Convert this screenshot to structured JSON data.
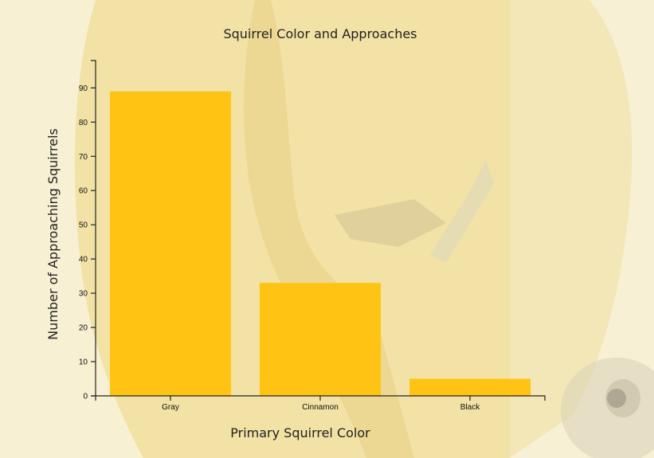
{
  "chart_data": {
    "type": "bar",
    "title": "Squirrel Color and Approaches",
    "xlabel": "Primary Squirrel Color",
    "ylabel": "Number of Approaching Squirrels",
    "categories": [
      "Gray",
      "Cinnamon",
      "Black"
    ],
    "values": [
      89,
      33,
      5
    ],
    "ylim": [
      0,
      98
    ],
    "yticks": [
      0,
      10,
      20,
      30,
      40,
      50,
      60,
      70,
      80,
      90
    ],
    "grid": false,
    "bar_color": "#ffc313"
  },
  "background": {
    "description_icon": "squirrel-photo-background",
    "colors": {
      "coat": "#efd98a",
      "coat_shadow": "#d9c27a",
      "sky": "#f8f2d6"
    }
  }
}
